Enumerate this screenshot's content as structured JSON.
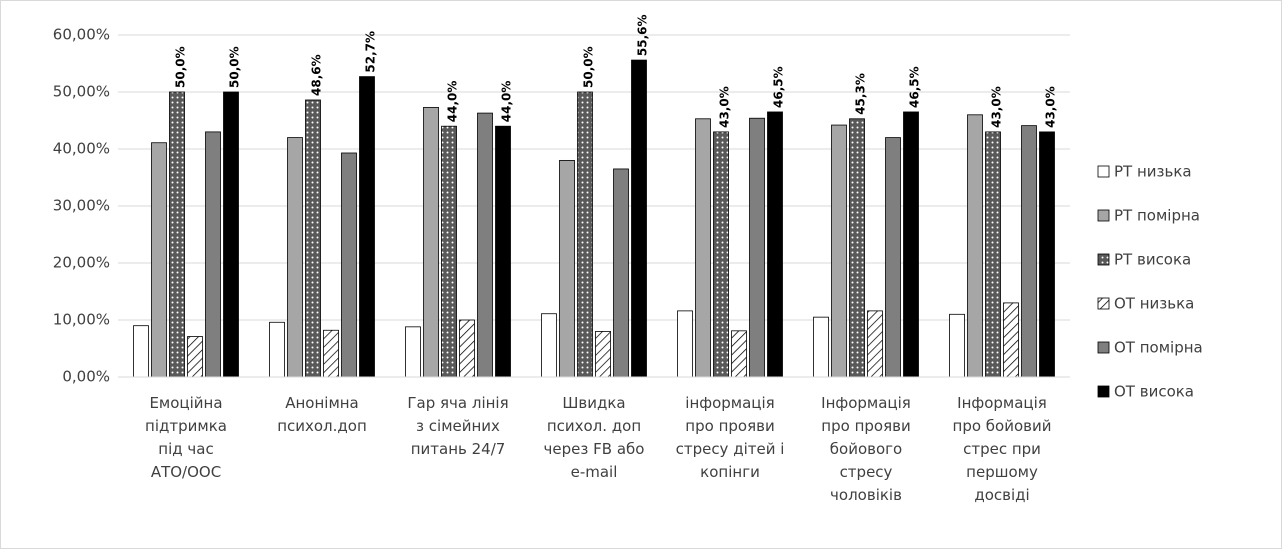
{
  "chart_data": {
    "type": "bar",
    "categories": [
      "Емоційна\nпідтримка\nпід час\nАТО/ООС",
      "Анонімна\nпсихол.доп",
      "Гар яча лінія\nз сімейних\nпитань 24/7",
      "Швидка\nпсихол. доп\nчерез FB або\ne-mail",
      "інформація\nпро прояви\nстресу дітей і\nкопінги",
      "Інформація\nпро прояви\nбойового\nстресу\nчоловіків",
      "Інформація\nпро бойовий\nстрес при\nпершому\nдосвіді"
    ],
    "series": [
      {
        "name": "РТ низька",
        "color": "#ffffff",
        "pattern": "none",
        "values": [
          9.0,
          9.6,
          8.8,
          11.1,
          11.6,
          10.5,
          11.0
        ]
      },
      {
        "name": "РТ помірна",
        "color": "#a6a6a6",
        "pattern": "none",
        "values": [
          41.1,
          42.0,
          47.3,
          38.0,
          45.3,
          44.2,
          46.0
        ]
      },
      {
        "name": "РТ висока",
        "color": "#595959",
        "pattern": "dots",
        "values": [
          50.0,
          48.6,
          44.0,
          50.0,
          43.0,
          45.3,
          43.0
        ],
        "value_labels": [
          "50,0%",
          "48,6%",
          "44,0%",
          "50,0%",
          "43,0%",
          "45,3%",
          "43,0%"
        ]
      },
      {
        "name": "ОТ низька",
        "color": "#ffffff",
        "pattern": "hatch",
        "values": [
          7.1,
          8.2,
          10.0,
          8.0,
          8.1,
          11.6,
          13.0
        ]
      },
      {
        "name": "ОТ помірна",
        "color": "#7f7f7f",
        "pattern": "none",
        "values": [
          43.0,
          39.3,
          46.3,
          36.5,
          45.4,
          42.0,
          44.1
        ]
      },
      {
        "name": "ОТ висока",
        "color": "#000000",
        "pattern": "none",
        "values": [
          50.0,
          52.7,
          44.0,
          55.6,
          46.5,
          46.5,
          43.0
        ],
        "value_labels": [
          "50,0%",
          "52,7%",
          "44,0%",
          "55,6%",
          "46,5%",
          "46,5%",
          "43,0%"
        ]
      }
    ],
    "ylim": [
      0,
      60
    ],
    "yticks": [
      {
        "value": 0,
        "label": "0,00%"
      },
      {
        "value": 10,
        "label": "10,00%"
      },
      {
        "value": 20,
        "label": "20,00%"
      },
      {
        "value": 30,
        "label": "30,00%"
      },
      {
        "value": 40,
        "label": "40,00%"
      },
      {
        "value": 50,
        "label": "50,00%"
      },
      {
        "value": 60,
        "label": "60,00%"
      }
    ],
    "grid": true,
    "legend": "right"
  }
}
